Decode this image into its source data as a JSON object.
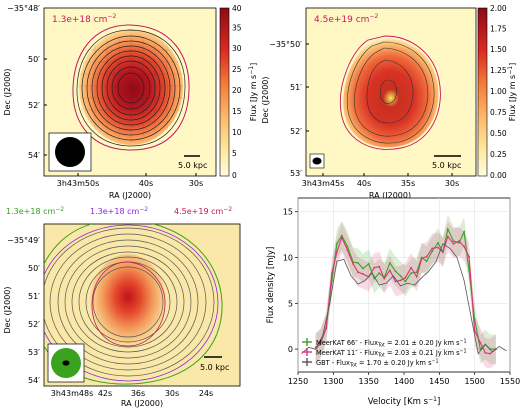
{
  "panels": {
    "tl": {
      "label": "1.3e+18 cm",
      "label_exp": "−2",
      "label_color": "#c8175d",
      "y_prefix": "−35°48′",
      "y_ticks": [
        "50′",
        "52′",
        "54′"
      ],
      "y_title": "Dec (J2000)",
      "x_ticks": [
        "3h43m50s",
        "40s",
        "30s"
      ],
      "x_title": "RA (J2000)",
      "scalebar": "5.0 kpc",
      "colorbar_title": "Flux [Jy m s",
      "colorbar_title_exp": "−1",
      "colorbar_title_end": "]",
      "colorbar_ticks": [
        "40",
        "35",
        "30",
        "25",
        "20",
        "15",
        "10",
        "5",
        "0"
      ]
    },
    "tr": {
      "label": "4.5e+19 cm",
      "label_exp": "−2",
      "label_color": "#c8175d",
      "y_ticks": [
        "−35°50′",
        "51′",
        "52′",
        "53′"
      ],
      "y_title": "Dec (J2000)",
      "x_ticks": [
        "3h43m45s",
        "40s",
        "35s",
        "30s"
      ],
      "x_title": "RA (J2000)",
      "scalebar": "5.0 kpc",
      "colorbar_title": "Flux [Jy m s",
      "colorbar_title_exp": "−1",
      "colorbar_title_end": "]",
      "colorbar_ticks": [
        "2.00",
        "1.75",
        "1.50",
        "1.25",
        "1.00",
        "0.75",
        "0.50",
        "0.25",
        "0.00"
      ]
    },
    "bl": {
      "legend": [
        {
          "text": "1.3e+18 cm",
          "exp": "−2",
          "color": "#3aa31d"
        },
        {
          "text": "1.3e+18 cm",
          "exp": "−2",
          "color": "#8a2be2"
        },
        {
          "text": "4.5e+19 cm",
          "exp": "−2",
          "color": "#c8175d"
        }
      ],
      "y_ticks": [
        "−35°49′",
        "50′",
        "51′",
        "52′",
        "53′",
        "54′"
      ],
      "y_title": "Dec (J2000)",
      "x_ticks": [
        "3h43m48s",
        "42s",
        "36s",
        "30s",
        "24s"
      ],
      "x_title": "RA (J2000)",
      "scalebar": "5.0 kpc"
    }
  },
  "chart_data": {
    "type": "line",
    "xlabel": "Velocity [Km s",
    "xlabel_exp": "−1",
    "xlabel_end": "]",
    "ylabel": "Flux density [mJy]",
    "xlim": [
      1250,
      1550
    ],
    "ylim": [
      -2.5,
      16.5
    ],
    "x_ticks": [
      1250,
      1300,
      1350,
      1400,
      1450,
      1500,
      1550
    ],
    "y_ticks": [
      0,
      5,
      10,
      15
    ],
    "legend_position": "lower-center",
    "series": [
      {
        "name": "MeerKAT 66″",
        "legend_suffix": " - Flux",
        "legend_sub": "Tot",
        "legend_value": " = 2.01 ± 0.20 Jy km s",
        "legend_exp": "−1",
        "color": "#3aa31d",
        "x": [
          1275,
          1282,
          1290,
          1298,
          1305,
          1312,
          1320,
          1328,
          1335,
          1342,
          1350,
          1358,
          1365,
          1372,
          1380,
          1388,
          1395,
          1402,
          1410,
          1418,
          1425,
          1432,
          1440,
          1448,
          1455,
          1462,
          1470,
          1478,
          1485,
          1492,
          1500,
          1508,
          1515,
          1522,
          1530
        ],
        "y": [
          0.2,
          0.5,
          2.5,
          7.5,
          11.5,
          12.4,
          11.2,
          9.5,
          9.4,
          8.8,
          9.3,
          7.7,
          8.3,
          7.8,
          9.4,
          8.5,
          8.0,
          7.4,
          8.3,
          8.4,
          10.0,
          9.6,
          10.7,
          11.6,
          10.6,
          13.1,
          11.8,
          11.6,
          12.8,
          8.6,
          3.2,
          0.0,
          0.5,
          0.0,
          0.0
        ]
      },
      {
        "name": "MeerKAT 11″",
        "legend_suffix": " - Flux",
        "legend_sub": "Tot",
        "legend_value": " = 2.03 ± 0.21 Jy km s",
        "legend_exp": "−1",
        "color": "#e0307a",
        "x": [
          1275,
          1282,
          1290,
          1298,
          1305,
          1312,
          1320,
          1328,
          1335,
          1342,
          1350,
          1358,
          1365,
          1372,
          1380,
          1388,
          1395,
          1402,
          1410,
          1418,
          1425,
          1432,
          1440,
          1448,
          1455,
          1462,
          1470,
          1478,
          1485,
          1492,
          1500,
          1508,
          1515,
          1522,
          1530
        ],
        "y": [
          0.0,
          0.7,
          2.3,
          8.3,
          10.6,
          12.2,
          10.8,
          9.3,
          8.4,
          8.2,
          7.9,
          8.9,
          9.0,
          7.7,
          8.6,
          7.4,
          7.5,
          7.8,
          8.9,
          7.9,
          9.9,
          10.1,
          11.0,
          11.1,
          10.6,
          12.3,
          11.5,
          11.8,
          11.2,
          10.1,
          2.0,
          0.7,
          -0.4,
          -0.5,
          0.0
        ]
      },
      {
        "name": "GBT",
        "legend_suffix": "        - Flux",
        "legend_sub": "Tot",
        "legend_value": " = 1.70 ± 0.20 Jy km s",
        "legend_exp": "−1",
        "color": "#555555",
        "x": [
          1255,
          1265,
          1275,
          1285,
          1295,
          1305,
          1315,
          1325,
          1335,
          1345,
          1355,
          1365,
          1375,
          1385,
          1395,
          1405,
          1415,
          1425,
          1435,
          1445,
          1455,
          1465,
          1475,
          1485,
          1495,
          1505,
          1515,
          1525,
          1535,
          1545
        ],
        "y": [
          -0.5,
          0.2,
          0.0,
          1.5,
          5.0,
          9.6,
          9.8,
          8.0,
          7.1,
          7.5,
          8.3,
          7.0,
          7.2,
          8.0,
          6.9,
          7.2,
          7.0,
          7.8,
          8.5,
          9.5,
          11.5,
          11.0,
          10.0,
          7.5,
          3.5,
          -0.5,
          0.5,
          -0.3,
          0.3,
          -0.2
        ]
      }
    ]
  }
}
